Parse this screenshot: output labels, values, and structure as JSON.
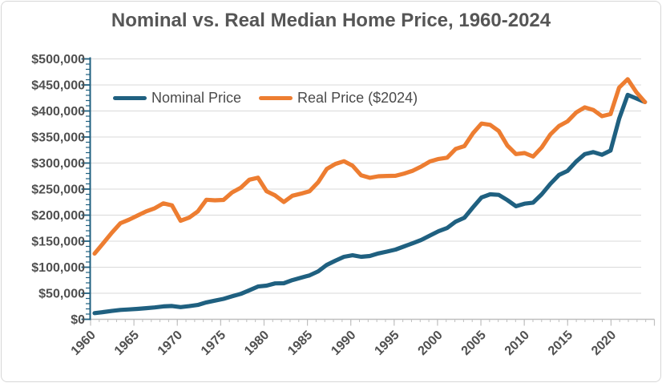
{
  "title": {
    "text": "Nominal vs. Real Median Home Price, 1960-2024",
    "color": "#565656"
  },
  "legend": {
    "position": "top-inside",
    "items": [
      {
        "label": "Nominal Price",
        "color": "#1F6080"
      },
      {
        "label": "Real Price ($2024)",
        "color": "#ED7D31"
      }
    ]
  },
  "colors": {
    "nominal_line": "#1F6080",
    "real_line": "#ED7D31",
    "gridline": "#D9D9D9",
    "x_axis_line": "#BFBFBF",
    "y_axis_line": "#1F6080",
    "axis_text": "#505050",
    "frame_border": "#D7D7D7",
    "background": "#FFFFFF"
  },
  "chart_data": {
    "type": "line",
    "title": "Nominal vs. Real Median Home Price, 1960-2024",
    "xlabel": "",
    "ylabel": "",
    "grid": "horizontal",
    "legend_position": "top-left-inside",
    "x_axis": {
      "min": 1960,
      "max": 2024,
      "major_step_years": 5,
      "minor_step_years": 1,
      "tick_labels": [
        "1960",
        "1965",
        "1970",
        "1975",
        "1980",
        "1985",
        "1990",
        "1995",
        "2000",
        "2005",
        "2010",
        "2015",
        "2020"
      ],
      "label_rotation_deg": -45
    },
    "y_axis": {
      "min": 0,
      "max": 500000,
      "major_step": 50000,
      "minor_step": 10000,
      "tick_labels": [
        "$0",
        "$50,000",
        "$100,000",
        "$150,000",
        "$200,000",
        "$250,000",
        "$300,000",
        "$350,000",
        "$400,000",
        "$450,000",
        "$500,000"
      ]
    },
    "x": [
      1960,
      1961,
      1962,
      1963,
      1964,
      1965,
      1966,
      1967,
      1968,
      1969,
      1970,
      1971,
      1972,
      1973,
      1974,
      1975,
      1976,
      1977,
      1978,
      1979,
      1980,
      1981,
      1982,
      1983,
      1984,
      1985,
      1986,
      1987,
      1988,
      1989,
      1990,
      1991,
      1992,
      1993,
      1994,
      1995,
      1996,
      1997,
      1998,
      1999,
      2000,
      2001,
      2002,
      2003,
      2004,
      2005,
      2006,
      2007,
      2008,
      2009,
      2010,
      2011,
      2012,
      2013,
      2014,
      2015,
      2016,
      2017,
      2018,
      2019,
      2020,
      2021,
      2022,
      2023,
      2024
    ],
    "series": [
      {
        "name": "Nominal Price",
        "color": "#1F6080",
        "values": [
          11900,
          13900,
          16000,
          18000,
          18900,
          20000,
          21400,
          22700,
          24700,
          25600,
          23400,
          25200,
          27600,
          32500,
          35900,
          39300,
          44200,
          48800,
          55700,
          62900,
          64600,
          68900,
          69300,
          75300,
          79900,
          84300,
          92000,
          104500,
          112500,
          120000,
          122900,
          120000,
          121500,
          126500,
          130000,
          133900,
          140000,
          146000,
          152500,
          161000,
          169000,
          175200,
          187600,
          195000,
          215000,
          234000,
          240000,
          239000,
          229000,
          217000,
          222000,
          224000,
          240000,
          260000,
          277000,
          285000,
          303000,
          317000,
          321000,
          316000,
          324000,
          385000,
          431000,
          424000,
          417000
        ]
      },
      {
        "name": "Real Price ($2024)",
        "color": "#ED7D31",
        "values": [
          126100,
          145800,
          166200,
          184500,
          191300,
          199200,
          207200,
          213200,
          222600,
          218800,
          189200,
          195200,
          207100,
          229600,
          228400,
          229200,
          243700,
          252600,
          268000,
          271800,
          245900,
          237800,
          225300,
          237200,
          241200,
          245800,
          263300,
          288600,
          298300,
          303600,
          295000,
          276400,
          271700,
          274600,
          275200,
          275600,
          279900,
          285300,
          293400,
          303100,
          307900,
          310300,
          327200,
          332500,
          357100,
          375800,
          373400,
          361600,
          333700,
          317300,
          319300,
          312500,
          330000,
          355000,
          371000,
          380000,
          397000,
          407000,
          402000,
          390000,
          394000,
          445000,
          461000,
          436000,
          417000
        ]
      }
    ]
  }
}
